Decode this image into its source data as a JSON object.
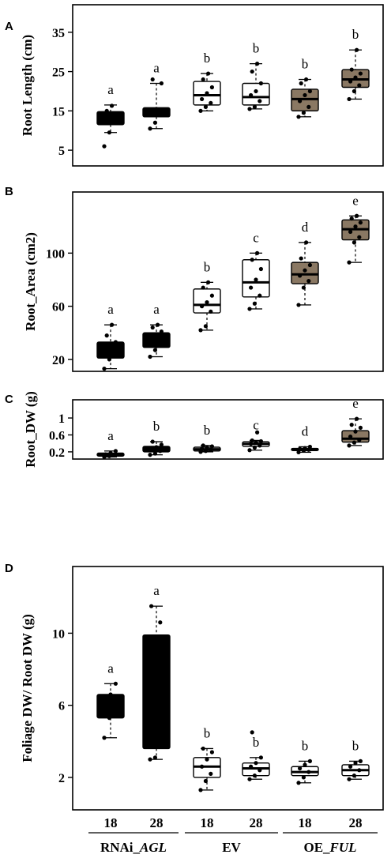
{
  "chart_data": [
    {
      "type": "box",
      "panel": "A",
      "ylabel": "Root Length (cm)",
      "ylim": [
        1,
        42
      ],
      "yticks": [
        5,
        15,
        25,
        35
      ],
      "groups": [
        {
          "sig": "a",
          "fill": "black",
          "q1": 11.5,
          "median": 13.5,
          "q3": 14.8,
          "whisker_low": 9.5,
          "whisker_high": 16.5,
          "points": [
            6,
            9.5,
            12,
            13,
            13.5,
            14,
            15,
            16.3
          ]
        },
        {
          "sig": "a",
          "fill": "black",
          "q1": 13.5,
          "median": 15,
          "q3": 15.8,
          "whisker_low": 10.5,
          "whisker_high": 22,
          "points": [
            10.5,
            12,
            14,
            15,
            15.5,
            22,
            23
          ]
        },
        {
          "sig": "b",
          "fill": "white",
          "q1": 16.5,
          "median": 19,
          "q3": 22.5,
          "whisker_low": 15,
          "whisker_high": 24.5,
          "points": [
            15,
            16,
            17,
            18,
            19.5,
            21,
            23,
            24.5
          ]
        },
        {
          "sig": "b",
          "fill": "white",
          "q1": 16.5,
          "median": 18.5,
          "q3": 22,
          "whisker_low": 15.5,
          "whisker_high": 27,
          "points": [
            15.5,
            16,
            17.5,
            19,
            20,
            22,
            25,
            27
          ]
        },
        {
          "sig": "b",
          "fill": "tan",
          "q1": 15,
          "median": 18,
          "q3": 20.5,
          "whisker_low": 13.5,
          "whisker_high": 23,
          "points": [
            13.5,
            14.5,
            16,
            17.5,
            19,
            20,
            22,
            23
          ]
        },
        {
          "sig": "b",
          "fill": "tan",
          "q1": 21,
          "median": 23,
          "q3": 25.5,
          "whisker_low": 18,
          "whisker_high": 30.5,
          "points": [
            18,
            20,
            21.5,
            22.5,
            23.5,
            24.5,
            25.5,
            30.5
          ]
        }
      ]
    },
    {
      "type": "box",
      "panel": "B",
      "ylabel": "Root_Area (cm2)",
      "ylim": [
        11,
        146
      ],
      "yticks": [
        20,
        60,
        100
      ],
      "groups": [
        {
          "sig": "a",
          "fill": "black",
          "q1": 21,
          "median": 27,
          "q3": 33,
          "whisker_low": 13,
          "whisker_high": 46,
          "points": [
            13,
            20,
            24,
            27,
            30,
            33,
            38,
            46
          ]
        },
        {
          "sig": "a",
          "fill": "black",
          "q1": 29,
          "median": 34,
          "q3": 40,
          "whisker_low": 22,
          "whisker_high": 46,
          "points": [
            22,
            27,
            31,
            34,
            37,
            41,
            44,
            46
          ]
        },
        {
          "sig": "b",
          "fill": "white",
          "q1": 55,
          "median": 61,
          "q3": 73,
          "whisker_low": 42,
          "whisker_high": 78,
          "points": [
            42,
            45,
            56,
            60,
            63,
            68,
            74,
            78
          ]
        },
        {
          "sig": "c",
          "fill": "white",
          "q1": 67,
          "median": 78,
          "q3": 95,
          "whisker_low": 58,
          "whisker_high": 100,
          "points": [
            58,
            62,
            68,
            74,
            80,
            88,
            95,
            100
          ]
        },
        {
          "sig": "d",
          "fill": "tan",
          "q1": 77,
          "median": 84,
          "q3": 93,
          "whisker_low": 61,
          "whisker_high": 108,
          "points": [
            61,
            74,
            79,
            83,
            87,
            91,
            96,
            108
          ]
        },
        {
          "sig": "e",
          "fill": "tan",
          "q1": 110,
          "median": 118,
          "q3": 125,
          "whisker_low": 93,
          "whisker_high": 128,
          "points": [
            93,
            108,
            112,
            116,
            120,
            123,
            126,
            128
          ]
        }
      ]
    },
    {
      "type": "box",
      "panel": "C",
      "ylabel": "Root_DW (g)",
      "ylim": [
        0.03,
        1.43
      ],
      "yticks": [
        0.2,
        0.6,
        1.0
      ],
      "groups": [
        {
          "sig": "a",
          "fill": "black",
          "q1": 0.1,
          "median": 0.13,
          "q3": 0.17,
          "whisker_low": 0.08,
          "whisker_high": 0.22,
          "points": [
            0.08,
            0.1,
            0.12,
            0.14,
            0.17,
            0.22
          ]
        },
        {
          "sig": "b",
          "fill": "black",
          "q1": 0.2,
          "median": 0.26,
          "q3": 0.33,
          "whisker_low": 0.13,
          "whisker_high": 0.44,
          "points": [
            0.13,
            0.16,
            0.22,
            0.27,
            0.31,
            0.37,
            0.44
          ]
        },
        {
          "sig": "b",
          "fill": "white",
          "q1": 0.22,
          "median": 0.26,
          "q3": 0.31,
          "whisker_low": 0.2,
          "whisker_high": 0.35,
          "points": [
            0.2,
            0.22,
            0.25,
            0.27,
            0.3,
            0.33,
            0.35
          ]
        },
        {
          "sig": "c",
          "fill": "white",
          "q1": 0.33,
          "median": 0.39,
          "q3": 0.44,
          "whisker_low": 0.24,
          "whisker_high": 0.47,
          "points": [
            0.24,
            0.3,
            0.35,
            0.39,
            0.42,
            0.45,
            0.47,
            0.66
          ]
        },
        {
          "sig": "d",
          "fill": "black",
          "q1": 0.23,
          "median": 0.26,
          "q3": 0.28,
          "whisker_low": 0.19,
          "whisker_high": 0.32,
          "points": [
            0.19,
            0.23,
            0.25,
            0.27,
            0.29,
            0.32
          ]
        },
        {
          "sig": "e",
          "fill": "tan",
          "q1": 0.43,
          "median": 0.51,
          "q3": 0.7,
          "whisker_low": 0.35,
          "whisker_high": 0.98,
          "points": [
            0.35,
            0.42,
            0.48,
            0.56,
            0.68,
            0.77,
            0.84,
            0.98
          ]
        }
      ]
    },
    {
      "type": "box",
      "panel": "D",
      "ylabel": "Foliage DW/ Root DW (g)",
      "ylim": [
        0.2,
        13.7
      ],
      "yticks": [
        2,
        6,
        10
      ],
      "xticks": [
        "18",
        "28",
        "18",
        "28",
        "18",
        "28"
      ],
      "group_labels": [
        {
          "label": "RNAi_",
          "italic": "AGL",
          "span": [
            0,
            1
          ]
        },
        {
          "label": "EV",
          "italic": "",
          "span": [
            2,
            3
          ]
        },
        {
          "label": "OE_",
          "italic": "FUL",
          "span": [
            4,
            5
          ]
        }
      ],
      "groups": [
        {
          "sig": "a",
          "fill": "black",
          "q1": 5.3,
          "median": 6.0,
          "q3": 6.6,
          "whisker_low": 4.2,
          "whisker_high": 7.2,
          "points": [
            4.2,
            5.3,
            5.8,
            6.2,
            6.6,
            7.2
          ]
        },
        {
          "sig": "a",
          "fill": "black",
          "q1": 3.6,
          "median": 6.5,
          "q3": 9.9,
          "whisker_low": 3.0,
          "whisker_high": 11.5,
          "points": [
            3.0,
            3.1,
            10.6,
            11.5
          ]
        },
        {
          "sig": "b",
          "fill": "white",
          "q1": 2.0,
          "median": 2.6,
          "q3": 3.1,
          "whisker_low": 1.3,
          "whisker_high": 3.6,
          "points": [
            1.3,
            1.8,
            2.2,
            2.6,
            3.0,
            3.4,
            3.6
          ]
        },
        {
          "sig": "b",
          "fill": "white",
          "q1": 2.1,
          "median": 2.5,
          "q3": 2.8,
          "whisker_low": 1.9,
          "whisker_high": 3.1,
          "points": [
            1.9,
            2.1,
            2.4,
            2.6,
            2.8,
            3.1,
            4.5
          ]
        },
        {
          "sig": "b",
          "fill": "white",
          "q1": 2.1,
          "median": 2.3,
          "q3": 2.6,
          "whisker_low": 1.7,
          "whisker_high": 2.9,
          "points": [
            1.7,
            2.0,
            2.3,
            2.5,
            2.7,
            2.9
          ]
        },
        {
          "sig": "b",
          "fill": "white",
          "q1": 2.1,
          "median": 2.4,
          "q3": 2.7,
          "whisker_low": 1.9,
          "whisker_high": 2.9,
          "points": [
            1.9,
            2.1,
            2.4,
            2.6,
            2.8,
            2.9
          ]
        }
      ]
    }
  ],
  "colors": {
    "black": "#000000",
    "white": "#ffffff",
    "tan": "#8a7863"
  }
}
